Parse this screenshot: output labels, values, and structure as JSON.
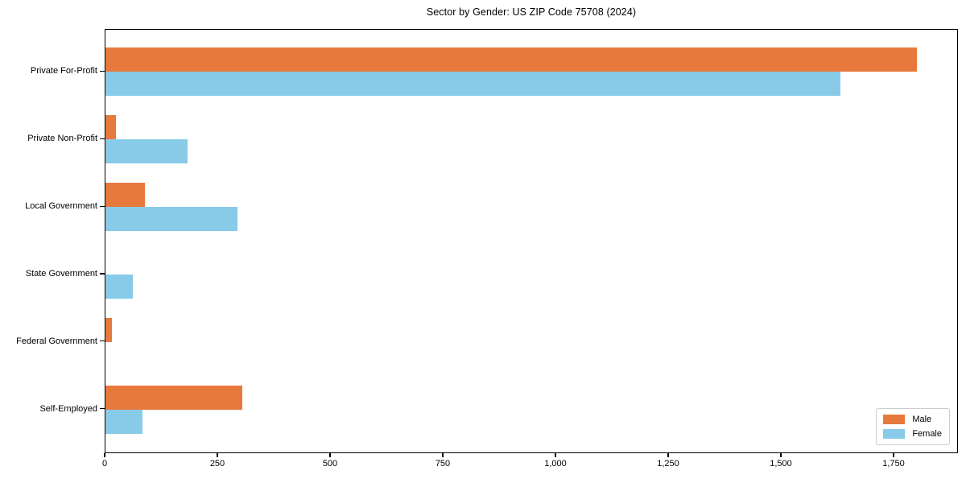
{
  "chart_data": {
    "type": "bar",
    "orientation": "horizontal",
    "title": "Sector by Gender: US ZIP Code 75708 (2024)",
    "categories": [
      "Private For-Profit",
      "Private Non-Profit",
      "Local Government",
      "State Government",
      "Federal Government",
      "Self-Employed"
    ],
    "series": [
      {
        "name": "Male",
        "color": "#E8793D",
        "values": [
          1800,
          23,
          88,
          0,
          15,
          304
        ]
      },
      {
        "name": "Female",
        "color": "#87CBE8",
        "values": [
          1630,
          183,
          292,
          60,
          0,
          82
        ]
      }
    ],
    "xlabel": "",
    "ylabel": "",
    "xlim": [
      0,
      1893
    ],
    "xticks": [
      0,
      250,
      500,
      750,
      1000,
      1250,
      1500,
      1750
    ],
    "xtick_labels": [
      "0",
      "250",
      "500",
      "750",
      "1,000",
      "1,250",
      "1,500",
      "1,750"
    ],
    "grid": false,
    "legend_position": "lower right",
    "axis_color": "#000000",
    "background_color": "#ffffff"
  }
}
